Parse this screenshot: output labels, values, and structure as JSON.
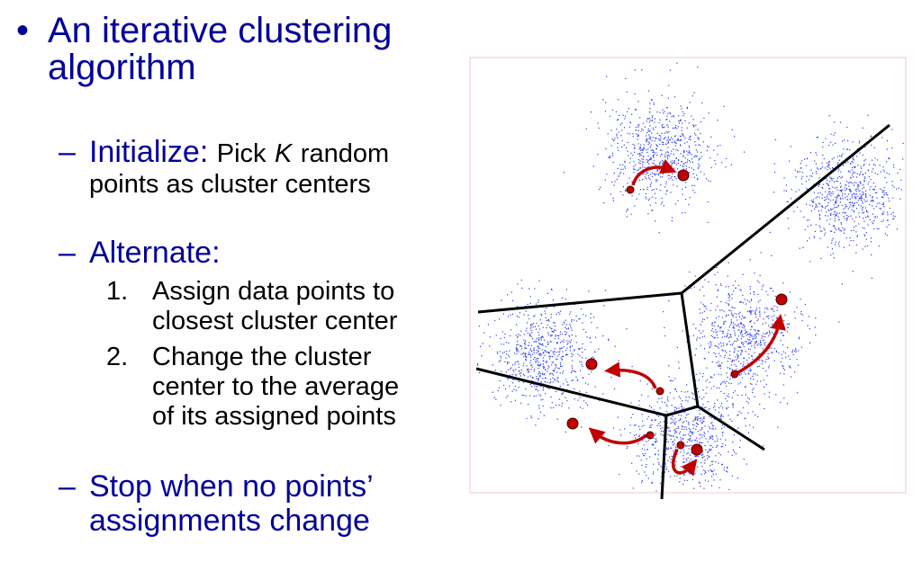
{
  "slide": {
    "title_lines": [
      "An iterative clustering",
      "algorithm"
    ],
    "initialize": {
      "label": "Initialize:",
      "text_before": "Pick",
      "variable": "K",
      "text_after": "random",
      "line2": "points as cluster centers"
    },
    "alternate": {
      "label": "Alternate:",
      "steps": [
        {
          "number": "1.",
          "lines": [
            "Assign data points to",
            "closest cluster center"
          ]
        },
        {
          "number": "2.",
          "lines": [
            "Change the cluster",
            "center to the average",
            "of its assigned points"
          ]
        }
      ]
    },
    "stop_lines": [
      "Stop when no points’",
      "assignments change"
    ]
  }
}
